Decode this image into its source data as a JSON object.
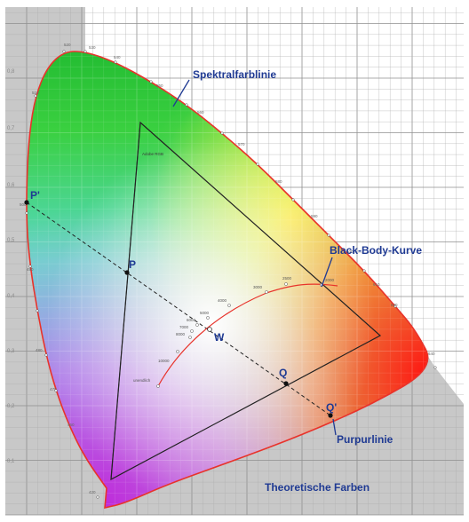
{
  "axes": {
    "y_ticks": [
      "0,1",
      "0,2",
      "0,3",
      "0,4",
      "0,5",
      "0,6",
      "0,7",
      "0,8"
    ]
  },
  "labels": {
    "spectral_locus": "Spektralfarblinie",
    "black_body": "Black-Body-Kurve",
    "purple_line": "Purpurlinie",
    "theoretical": "Theoretische Farben",
    "gamut": "Adobe RGB"
  },
  "points": {
    "P": "P",
    "P_prime": "P'",
    "Q": "Q",
    "Q_prime": "Q'",
    "W": "W"
  },
  "wavelengths": [
    "520",
    "530",
    "540",
    "510",
    "550",
    "560",
    "570",
    "580",
    "590",
    "600",
    "610",
    "620",
    "640",
    "500",
    "490",
    "480",
    "470",
    "460",
    "420"
  ],
  "color_temperatures": [
    "2000",
    "2500",
    "3000",
    "4000",
    "5000",
    "6000",
    "7000",
    "8000",
    "10000",
    "unendlich"
  ]
}
